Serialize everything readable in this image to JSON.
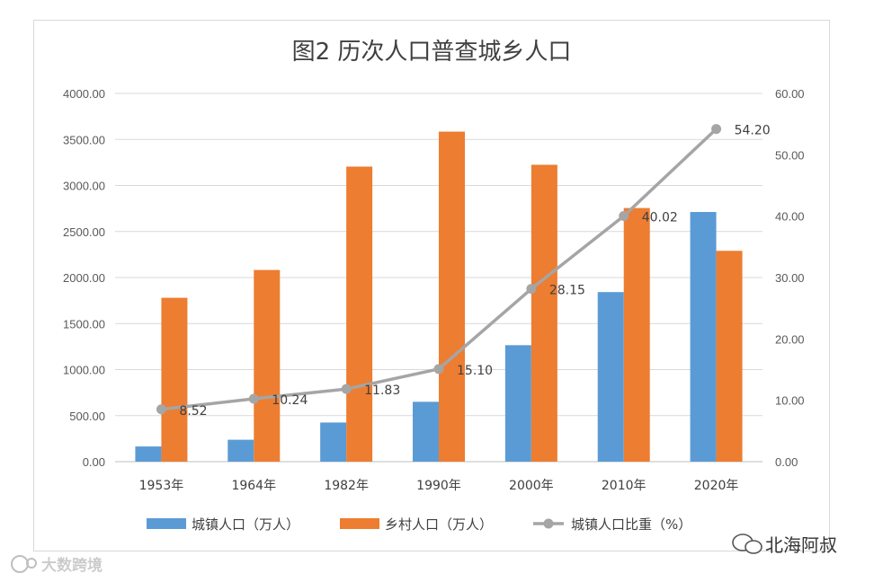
{
  "chart_data": {
    "type": "bar+line",
    "title": "图2    历次人口普查城乡人口",
    "categories": [
      "1953年",
      "1964年",
      "1982年",
      "1990年",
      "2000年",
      "2010年",
      "2020年"
    ],
    "series": [
      {
        "name": "城镇人口（万人）",
        "type": "bar",
        "axis": "left",
        "color": "#5b9bd5",
        "values": [
          165,
          238,
          425,
          650,
          1265,
          1842,
          2712
        ]
      },
      {
        "name": "乡村人口（万人）",
        "type": "bar",
        "axis": "left",
        "color": "#ed7d31",
        "values": [
          1780,
          2082,
          3205,
          3585,
          3225,
          2755,
          2290
        ]
      },
      {
        "name": "城镇人口比重（%）",
        "type": "line",
        "axis": "right",
        "color": "#a5a5a5",
        "values": [
          8.52,
          10.24,
          11.83,
          15.1,
          28.15,
          40.02,
          54.2
        ],
        "labels": [
          "8.52",
          "10.24",
          "11.83",
          "15.10",
          "28.15",
          "40.02",
          "54.20"
        ]
      }
    ],
    "y_left": {
      "range": [
        0,
        4000
      ],
      "ticks": [
        "0.00",
        "500.00",
        "1000.00",
        "1500.00",
        "2000.00",
        "2500.00",
        "3000.00",
        "3500.00",
        "4000.00"
      ]
    },
    "y_right": {
      "range": [
        0,
        60
      ],
      "ticks": [
        "0.00",
        "10.00",
        "20.00",
        "30.00",
        "40.00",
        "50.00",
        "60.00"
      ]
    },
    "grid": true,
    "legend_position": "bottom"
  },
  "watermarks": {
    "left": "大数跨境",
    "right": "北海阿叔"
  }
}
